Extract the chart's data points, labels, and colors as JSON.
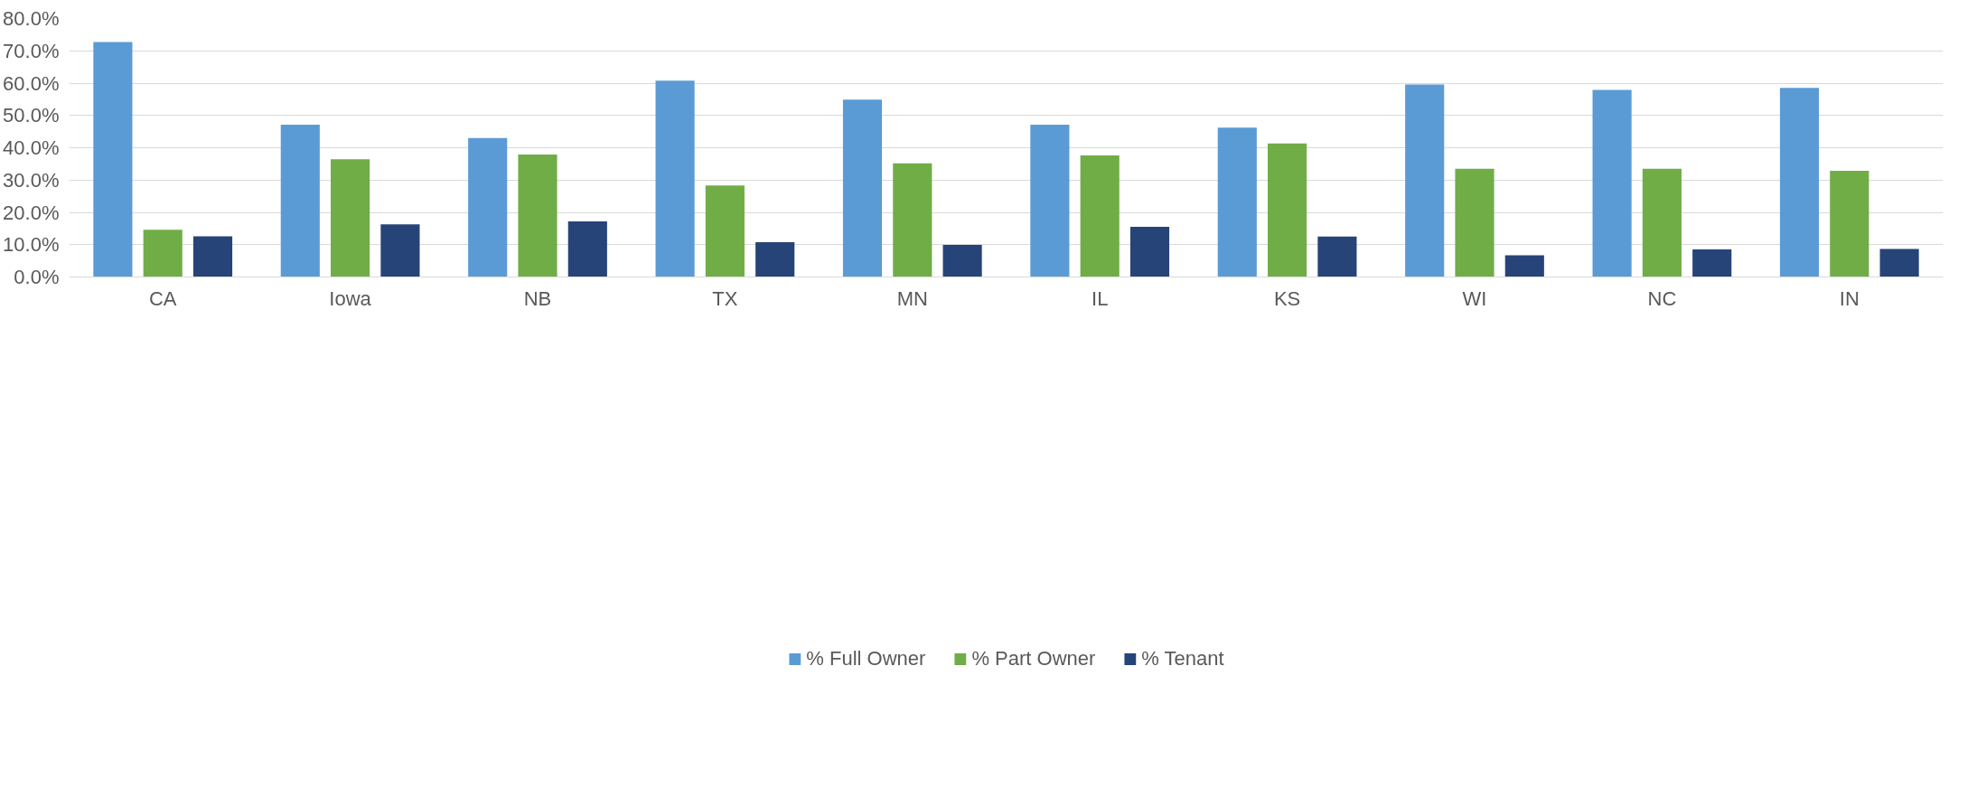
{
  "chart_data": {
    "type": "bar",
    "categories": [
      "CA",
      "Iowa",
      "NB",
      "TX",
      "MN",
      "IL",
      "KS",
      "WI",
      "NC",
      "IN"
    ],
    "series": [
      {
        "name": "% Full Owner",
        "color": "#5b9bd5",
        "values": [
          72.7,
          47.1,
          43.0,
          60.8,
          54.9,
          47.1,
          46.2,
          59.6,
          57.9,
          58.5
        ]
      },
      {
        "name": "% Part Owner",
        "color": "#70ad47",
        "values": [
          14.6,
          36.4,
          37.9,
          28.3,
          35.2,
          37.6,
          41.3,
          33.5,
          33.5,
          32.9
        ]
      },
      {
        "name": "% Tenant",
        "color": "#264478",
        "values": [
          12.6,
          16.3,
          17.2,
          10.8,
          9.9,
          15.5,
          12.5,
          6.7,
          8.5,
          8.7
        ]
      }
    ],
    "ylim": [
      0,
      80
    ],
    "yticks": [
      {
        "value": 0,
        "label": "0.0%"
      },
      {
        "value": 10,
        "label": "10.0%"
      },
      {
        "value": 20,
        "label": "20.0%"
      },
      {
        "value": 30,
        "label": "30.0%"
      },
      {
        "value": 40,
        "label": "40.0%"
      },
      {
        "value": 50,
        "label": "50.0%"
      },
      {
        "value": 60,
        "label": "60.0%"
      },
      {
        "value": 70,
        "label": "70.0%"
      },
      {
        "value": 80,
        "label": "80.0%"
      }
    ],
    "grid": "y",
    "legend": "bottom"
  }
}
